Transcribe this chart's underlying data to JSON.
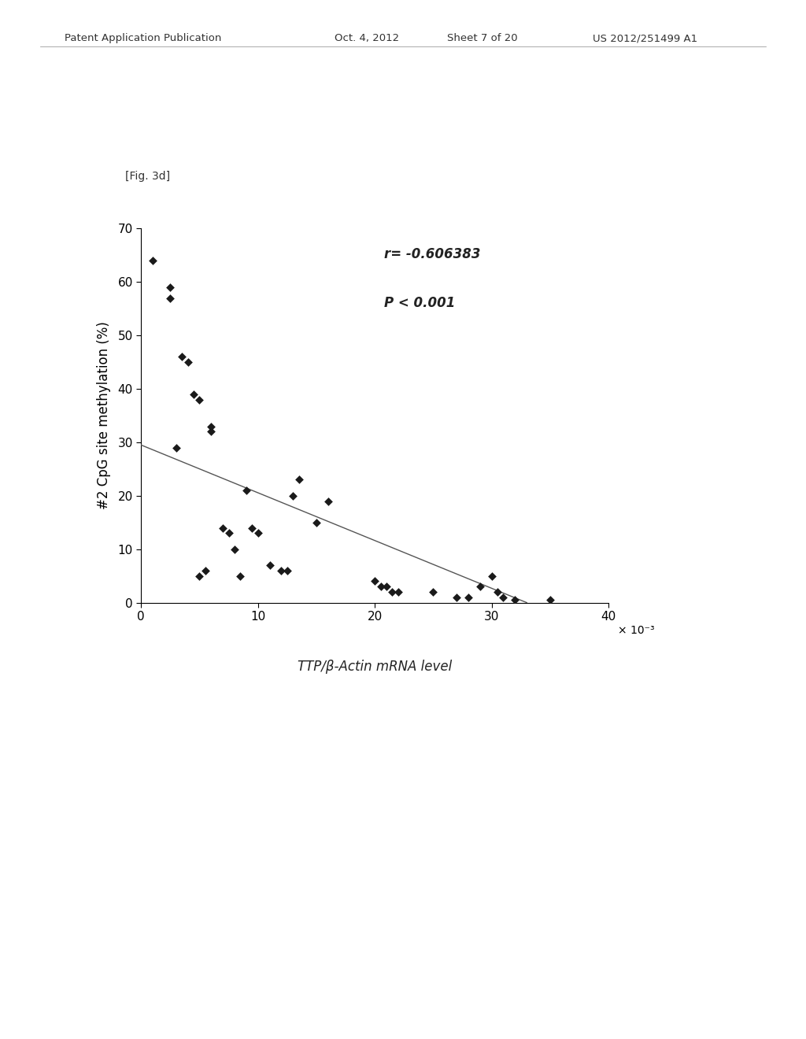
{
  "scatter_x": [
    1.0,
    2.5,
    2.5,
    3.0,
    3.5,
    4.0,
    4.5,
    5.0,
    5.0,
    5.5,
    6.0,
    6.0,
    7.0,
    7.5,
    8.0,
    8.5,
    9.0,
    9.5,
    10.0,
    11.0,
    12.0,
    12.5,
    13.0,
    13.5,
    15.0,
    16.0,
    20.0,
    20.5,
    21.0,
    21.5,
    22.0,
    25.0,
    27.0,
    28.0,
    29.0,
    30.0,
    30.5,
    31.0,
    32.0,
    35.0
  ],
  "scatter_y": [
    64.0,
    59.0,
    57.0,
    29.0,
    46.0,
    45.0,
    39.0,
    38.0,
    5.0,
    6.0,
    33.0,
    32.0,
    14.0,
    13.0,
    10.0,
    5.0,
    21.0,
    14.0,
    13.0,
    7.0,
    6.0,
    6.0,
    20.0,
    23.0,
    15.0,
    19.0,
    4.0,
    3.0,
    3.0,
    2.0,
    2.0,
    2.0,
    1.0,
    1.0,
    3.0,
    5.0,
    2.0,
    1.0,
    0.5,
    0.5
  ],
  "trendline_x": [
    0.0,
    33.0
  ],
  "trendline_y": [
    29.5,
    0.0
  ],
  "r_text": "r= -0.606383",
  "p_text": "P < 0.001",
  "fig_label": "[Fig. 3d]",
  "xlabel_italic": "TTP/β-Actin",
  "xlabel_normal": " mRNA level",
  "ylabel": "#2 CpG site methylation (%)",
  "xscale_label": "× 10⁻³",
  "xlim": [
    0,
    40
  ],
  "ylim": [
    0,
    70
  ],
  "xticks": [
    0,
    10,
    20,
    30,
    40
  ],
  "yticks": [
    0,
    10,
    20,
    30,
    40,
    50,
    60,
    70
  ],
  "background_color": "#ffffff",
  "scatter_color": "#1a1a1a",
  "line_color": "#555555",
  "marker_size": 30,
  "fig_width": 10.24,
  "fig_height": 13.2,
  "header_left": "Patent Application Publication",
  "header_date": "Oct. 4, 2012",
  "header_sheet": "Sheet 7 of 20",
  "header_id": "US 2012/251499 A1"
}
